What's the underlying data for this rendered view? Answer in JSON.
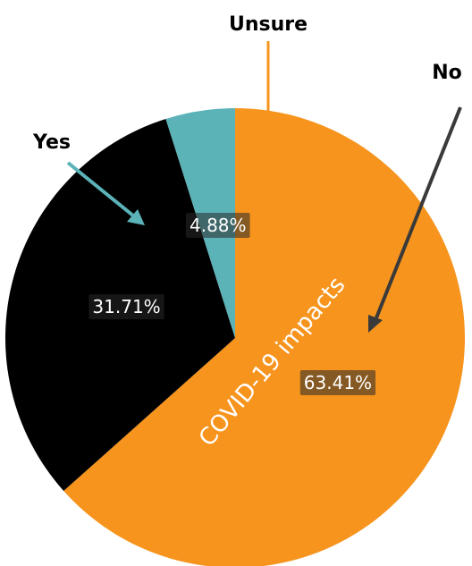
{
  "chart_data": {
    "type": "pie",
    "categories": [
      "No",
      "Yes",
      "Unsure"
    ],
    "values": [
      63.41,
      31.71,
      4.88
    ],
    "value_labels": [
      "63.41%",
      "31.71%",
      "4.88%"
    ],
    "colors": [
      "#f7941d",
      "#000000",
      "#5bb3b8"
    ],
    "annotation": "COVID-19 impacts"
  }
}
